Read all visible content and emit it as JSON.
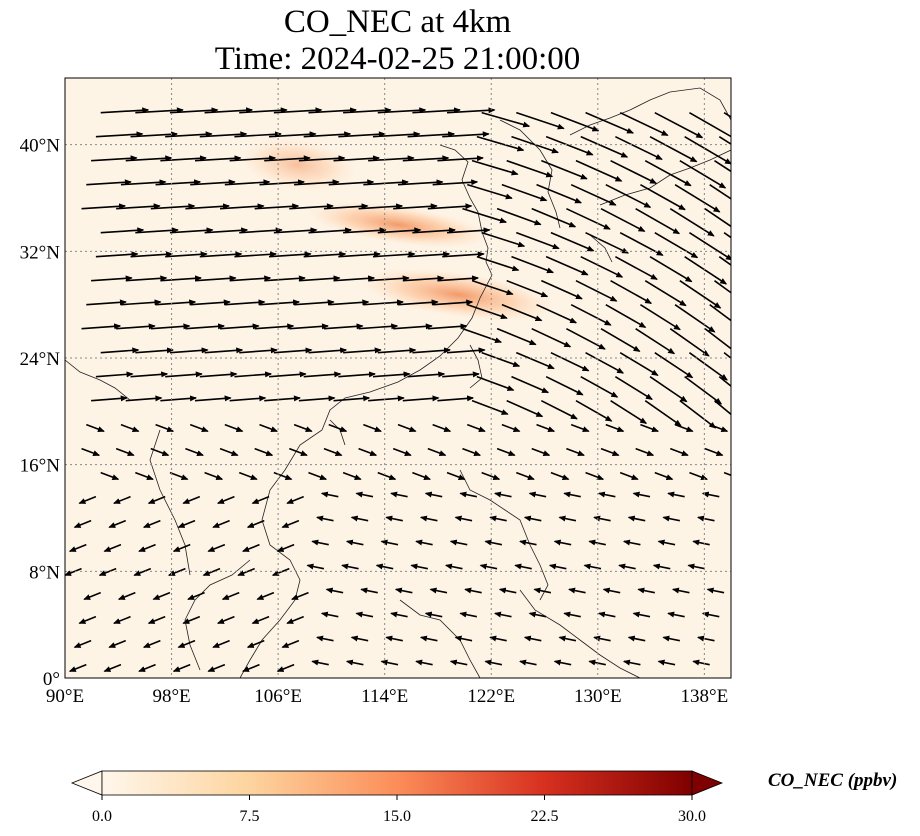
{
  "title": "CO_NEC at 4km",
  "subtitle": "Time: 2024-02-25 21:00:00",
  "map": {
    "projection": "PlateCarree",
    "lon_range": [
      90,
      140
    ],
    "lat_range": [
      0,
      45
    ],
    "lat_ticks": [
      {
        "value": 0,
        "label": "0°"
      },
      {
        "value": 8,
        "label": "8°N"
      },
      {
        "value": 16,
        "label": "16°N"
      },
      {
        "value": 24,
        "label": "24°N"
      },
      {
        "value": 32,
        "label": "32°N"
      },
      {
        "value": 40,
        "label": "40°N"
      }
    ],
    "lon_ticks": [
      {
        "value": 90,
        "label": "90°E"
      },
      {
        "value": 98,
        "label": "98°E"
      },
      {
        "value": 106,
        "label": "106°E"
      },
      {
        "value": 114,
        "label": "114°E"
      },
      {
        "value": 122,
        "label": "122°E"
      },
      {
        "value": 130,
        "label": "130°E"
      },
      {
        "value": 138,
        "label": "138°E"
      }
    ],
    "gridlines": true,
    "coastlines": true,
    "field": "CO_NEC",
    "plume_bands": [
      {
        "lon": [
          108,
          122
        ],
        "lat": [
          33,
          35
        ],
        "level": "moderate"
      },
      {
        "lon": [
          112,
          127
        ],
        "lat": [
          27.5,
          30
        ],
        "level": "moderate"
      },
      {
        "lon": [
          103,
          112
        ],
        "lat": [
          37,
          40
        ],
        "level": "weak"
      }
    ],
    "vectors": "wind"
  },
  "colorbar": {
    "label": "CO_NEC (ppbv)",
    "min": 0.0,
    "max": 30.0,
    "ticks": [
      "0.0",
      "7.5",
      "15.0",
      "22.5",
      "30.0"
    ],
    "colormap": "OrRd",
    "extend": "both",
    "colors": [
      "#fff7ec",
      "#fdd49e",
      "#fc8d59",
      "#d7301f",
      "#7f0000"
    ]
  }
}
